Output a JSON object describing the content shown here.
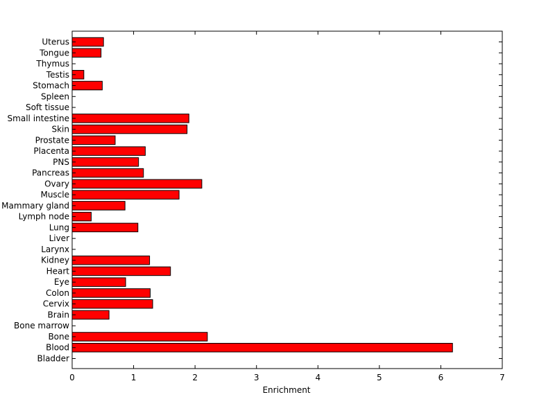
{
  "chart_data": {
    "type": "bar",
    "orientation": "horizontal",
    "categories": [
      "Bladder",
      "Blood",
      "Bone",
      "Bone marrow",
      "Brain",
      "Cervix",
      "Colon",
      "Eye",
      "Heart",
      "Kidney",
      "Larynx",
      "Liver",
      "Lung",
      "Lymph node",
      "Mammary gland",
      "Muscle",
      "Ovary",
      "Pancreas",
      "PNS",
      "Placenta",
      "Prostate",
      "Skin",
      "Small intestine",
      "Soft tissue",
      "Spleen",
      "Stomach",
      "Testis",
      "Thymus",
      "Tongue",
      "Uterus"
    ],
    "values": [
      0,
      6.19,
      2.2,
      0,
      0.6,
      1.31,
      1.27,
      0.87,
      1.6,
      1.26,
      0,
      0,
      1.07,
      0.31,
      0.86,
      1.74,
      2.11,
      1.16,
      1.08,
      1.19,
      0.7,
      1.87,
      1.9,
      0,
      0,
      0.49,
      0.19,
      0,
      0.47,
      0.51
    ],
    "title": "",
    "xlabel": "Enrichment",
    "ylabel": "",
    "xlim": [
      0,
      7
    ],
    "xticks": [
      "0",
      "1",
      "2",
      "3",
      "4",
      "5",
      "6",
      "7"
    ],
    "bar_color": "#ff0000",
    "bar_edge_color": "#000000",
    "grid": false,
    "legend": "none"
  }
}
